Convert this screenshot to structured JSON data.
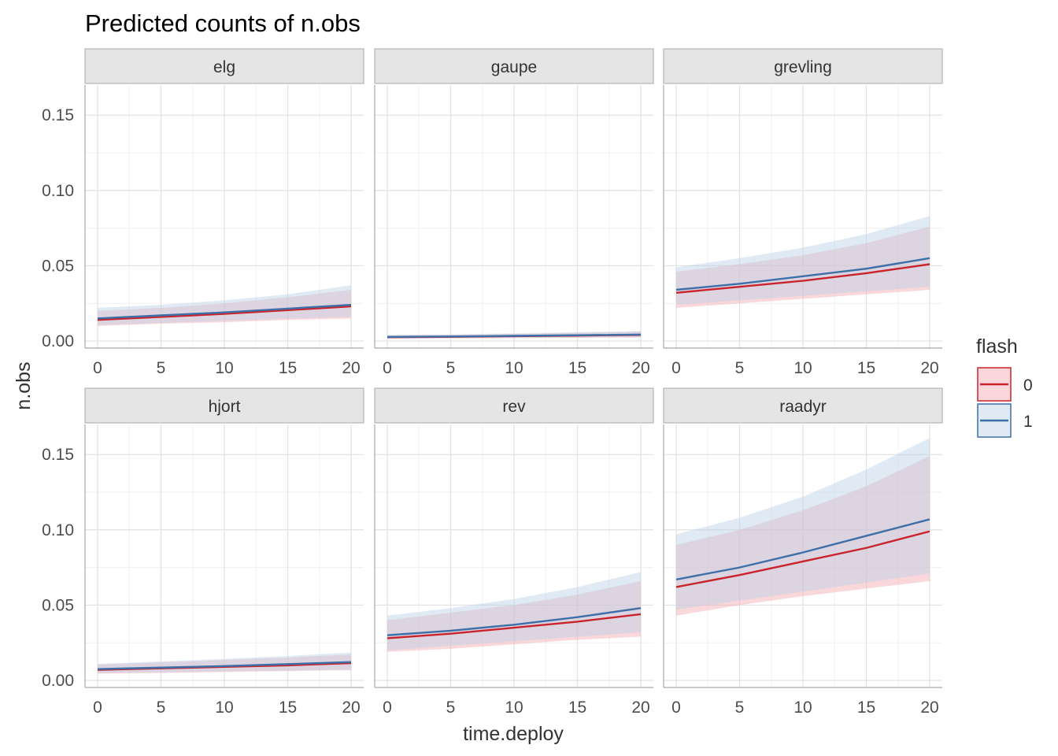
{
  "title": "Predicted counts of n.obs",
  "chart_data": {
    "type": "line",
    "title": "Predicted counts of n.obs",
    "xlabel": "time.deploy",
    "ylabel": "n.obs",
    "xlim": [
      0,
      20
    ],
    "ylim": [
      0,
      0.17
    ],
    "x_ticks": [
      0,
      5,
      10,
      15,
      20
    ],
    "y_ticks": [
      0,
      0.05,
      0.1,
      0.15
    ],
    "x_tick_labels": [
      "0",
      "5",
      "10",
      "15",
      "20"
    ],
    "y_tick_labels": [
      "0.00",
      "0.05",
      "0.10",
      "0.15"
    ],
    "grid": true,
    "legend": {
      "title": "flash",
      "placement": "right",
      "entries": [
        {
          "label": "0",
          "color": "#c9242c",
          "fill": "#f4a6ae"
        },
        {
          "label": "1",
          "color": "#3f6fa8",
          "fill": "#b9d0e6"
        }
      ]
    },
    "x": [
      0,
      5,
      10,
      15,
      20
    ],
    "panels": [
      {
        "name": "elg",
        "series": [
          {
            "name": "0",
            "values": [
              0.014,
              0.016,
              0.018,
              0.0205,
              0.023
            ],
            "lower": [
              0.01,
              0.0115,
              0.0125,
              0.014,
              0.015
            ],
            "upper": [
              0.02,
              0.022,
              0.025,
              0.029,
              0.034
            ]
          },
          {
            "name": "1",
            "values": [
              0.015,
              0.017,
              0.019,
              0.0215,
              0.024
            ],
            "lower": [
              0.0105,
              0.012,
              0.0135,
              0.0148,
              0.016
            ],
            "upper": [
              0.022,
              0.024,
              0.027,
              0.031,
              0.037
            ]
          }
        ]
      },
      {
        "name": "gaupe",
        "series": [
          {
            "name": "0",
            "values": [
              0.0025,
              0.0028,
              0.0032,
              0.0036,
              0.004
            ],
            "lower": [
              0.0015,
              0.0017,
              0.0019,
              0.0021,
              0.0023
            ],
            "upper": [
              0.0038,
              0.0042,
              0.0048,
              0.0055,
              0.0062
            ]
          },
          {
            "name": "1",
            "values": [
              0.0027,
              0.003,
              0.0034,
              0.0038,
              0.0043
            ],
            "lower": [
              0.0016,
              0.0018,
              0.002,
              0.0022,
              0.0024
            ],
            "upper": [
              0.004,
              0.0045,
              0.0051,
              0.0058,
              0.0066
            ]
          }
        ]
      },
      {
        "name": "grevling",
        "series": [
          {
            "name": "0",
            "values": [
              0.032,
              0.036,
              0.04,
              0.045,
              0.051
            ],
            "lower": [
              0.022,
              0.025,
              0.028,
              0.031,
              0.034
            ],
            "upper": [
              0.046,
              0.051,
              0.057,
              0.065,
              0.076
            ]
          },
          {
            "name": "1",
            "values": [
              0.034,
              0.038,
              0.043,
              0.048,
              0.055
            ],
            "lower": [
              0.024,
              0.027,
              0.03,
              0.033,
              0.036
            ],
            "upper": [
              0.049,
              0.055,
              0.062,
              0.071,
              0.083
            ]
          }
        ]
      },
      {
        "name": "hjort",
        "series": [
          {
            "name": "0",
            "values": [
              0.007,
              0.008,
              0.009,
              0.01,
              0.0115
            ],
            "lower": [
              0.0045,
              0.005,
              0.0056,
              0.0062,
              0.0068
            ],
            "upper": [
              0.0105,
              0.012,
              0.0135,
              0.0152,
              0.0172
            ]
          },
          {
            "name": "1",
            "values": [
              0.0075,
              0.0085,
              0.0095,
              0.0108,
              0.0122
            ],
            "lower": [
              0.0048,
              0.0053,
              0.0059,
              0.0065,
              0.0072
            ],
            "upper": [
              0.011,
              0.0126,
              0.0143,
              0.0162,
              0.0185
            ]
          }
        ]
      },
      {
        "name": "rev",
        "series": [
          {
            "name": "0",
            "values": [
              0.028,
              0.031,
              0.035,
              0.039,
              0.044
            ],
            "lower": [
              0.019,
              0.021,
              0.024,
              0.027,
              0.029
            ],
            "upper": [
              0.04,
              0.045,
              0.05,
              0.057,
              0.066
            ]
          },
          {
            "name": "1",
            "values": [
              0.03,
              0.033,
              0.037,
              0.042,
              0.048
            ],
            "lower": [
              0.02,
              0.023,
              0.026,
              0.029,
              0.032
            ],
            "upper": [
              0.043,
              0.048,
              0.054,
              0.062,
              0.072
            ]
          }
        ]
      },
      {
        "name": "raadyr",
        "series": [
          {
            "name": "0",
            "values": [
              0.062,
              0.07,
              0.079,
              0.088,
              0.099
            ],
            "lower": [
              0.043,
              0.05,
              0.056,
              0.061,
              0.066
            ],
            "upper": [
              0.09,
              0.1,
              0.113,
              0.129,
              0.149
            ]
          },
          {
            "name": "1",
            "values": [
              0.067,
              0.075,
              0.085,
              0.096,
              0.107
            ],
            "lower": [
              0.047,
              0.053,
              0.059,
              0.065,
              0.071
            ],
            "upper": [
              0.097,
              0.108,
              0.122,
              0.14,
              0.161
            ]
          }
        ]
      }
    ]
  }
}
